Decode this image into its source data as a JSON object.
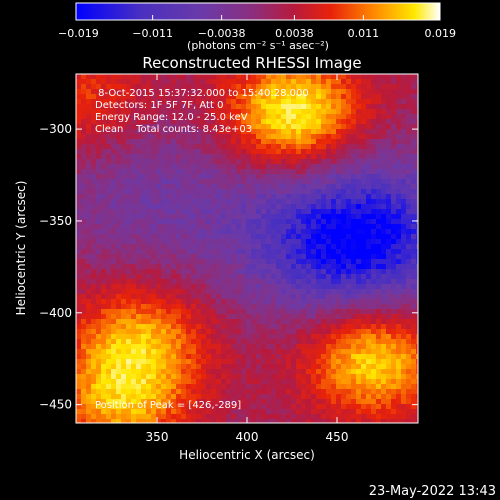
{
  "colorbar": {
    "tick_labels": [
      "-0.019",
      "-0.011",
      "-0.0038",
      "0.0038",
      "0.011",
      "0.019"
    ],
    "tick_values": [
      -0.019,
      -0.011,
      -0.0038,
      0.0038,
      0.011,
      0.019
    ],
    "range": [
      -0.019,
      0.019
    ],
    "units_label": "(photons cm⁻² s⁻¹ asec⁻²)"
  },
  "title": "Reconstructed RHESSI Image",
  "annotations": [
    " 8-Oct-2015 15:37:32.000 to 15:40:28.000",
    "Detectors: 1F 5F 7F, Att 0",
    "Energy Range: 12.0 - 25.0 keV",
    "Clean    Total counts: 8.43e+03"
  ],
  "peak_label": "Position of Peak = [426,-289]",
  "footer_date": "23-May-2022 13:43",
  "colors": {
    "background": "#000000",
    "foreground": "#ffffff",
    "colormap": [
      "#0000ff",
      "#4a30c0",
      "#6b3aa8",
      "#8a2f80",
      "#b81a3c",
      "#e8220a",
      "#ff8a00",
      "#ffe800",
      "#ffffff"
    ]
  },
  "chart_data": {
    "type": "heatmap",
    "title": "Reconstructed RHESSI Image",
    "xlabel": "Heliocentric X (arcsec)",
    "ylabel": "Heliocentric Y (arcsec)",
    "xlim": [
      305,
      495
    ],
    "ylim": [
      -460,
      -270
    ],
    "x_ticks": [
      350,
      400,
      450
    ],
    "y_ticks": [
      -300,
      -350,
      -400,
      -450
    ],
    "value_range": [
      -0.019,
      0.019
    ],
    "peak_position": [
      426,
      -289
    ],
    "features": [
      {
        "x": 426,
        "y": -292,
        "peak": 0.019
      },
      {
        "x": 470,
        "y": -425,
        "peak": 0.017
      },
      {
        "x": 340,
        "y": -415,
        "peak": 0.013
      },
      {
        "x": 310,
        "y": -285,
        "peak": 0.008
      },
      {
        "x": 330,
        "y": -450,
        "peak": 0.012
      },
      {
        "x": 460,
        "y": -360,
        "peak": -0.018
      },
      {
        "x": 345,
        "y": -335,
        "peak": -0.006
      }
    ],
    "grid": false
  }
}
